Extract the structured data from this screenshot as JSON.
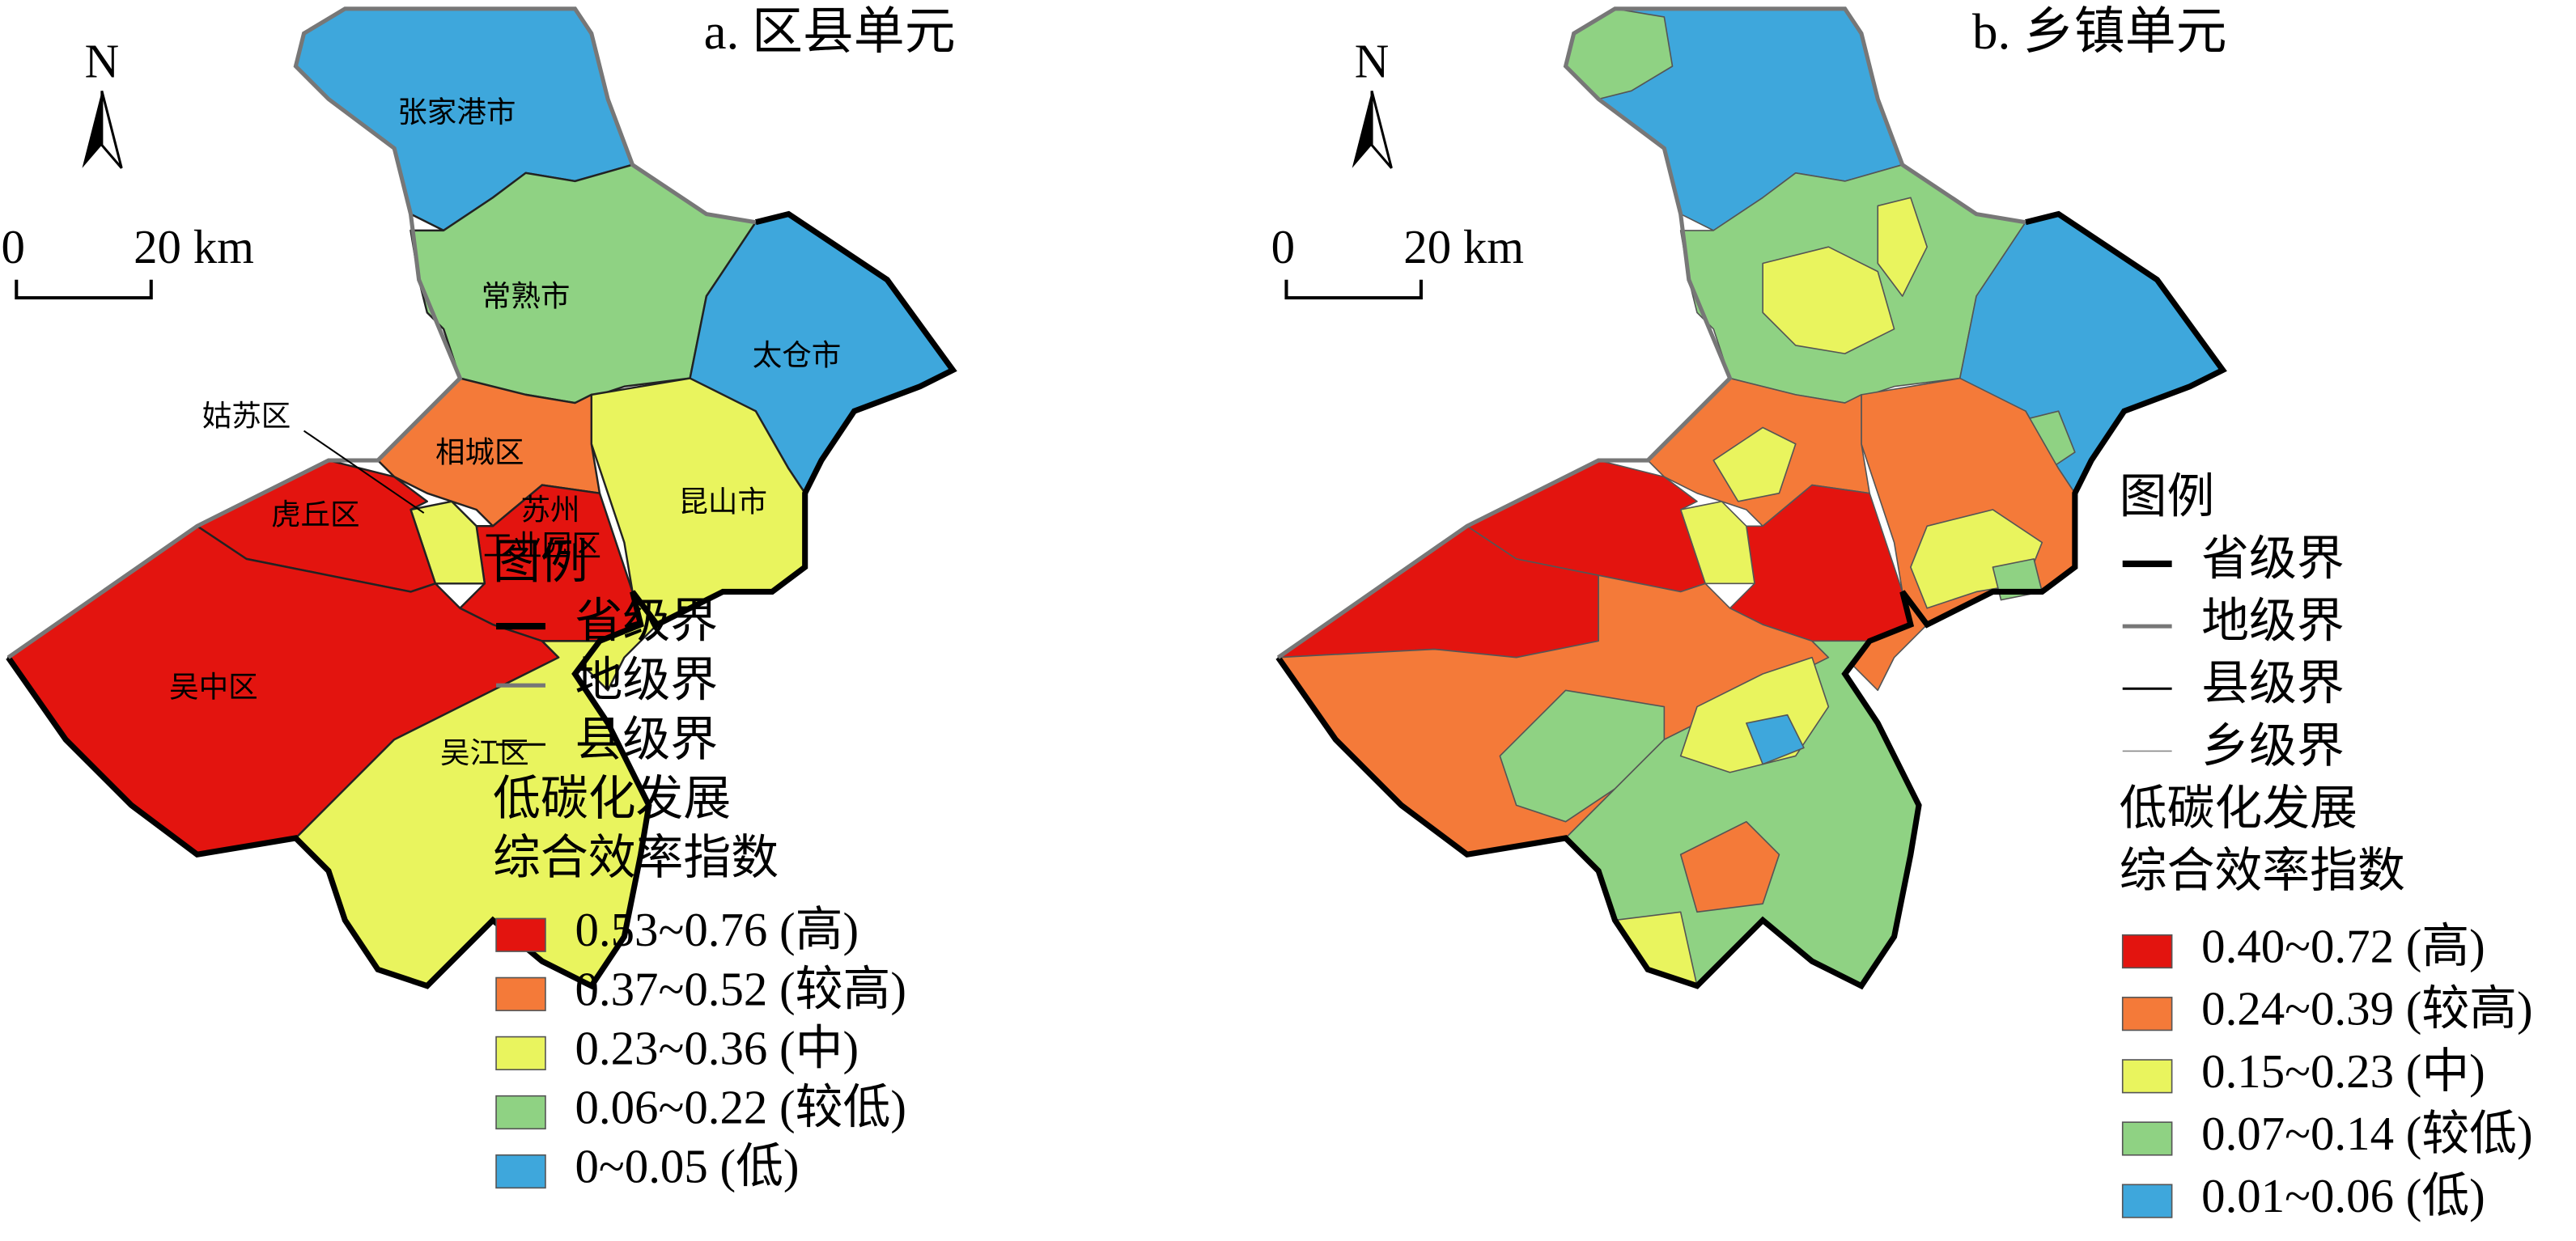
{
  "panels": [
    {
      "title": "a. 区县单元",
      "north": "N",
      "scale": {
        "start": "0",
        "end": "20 km"
      },
      "regions": [
        {
          "label": [
            "张家港市"
          ],
          "color": "#3ea7dc"
        },
        {
          "label": [
            "常熟市"
          ],
          "color": "#8fd283"
        },
        {
          "label": [
            "太仓市"
          ],
          "color": "#3ea7dc"
        },
        {
          "label": [
            "昆山市"
          ],
          "color": "#e9f45e"
        },
        {
          "label": [
            "相城区"
          ],
          "color": "#f47a39"
        },
        {
          "label": [
            "苏州",
            "工业园区"
          ],
          "color": "#e3140f"
        },
        {
          "label": [
            "姑苏区"
          ],
          "color": "#e9f45e"
        },
        {
          "label": [
            "虎丘区"
          ],
          "color": "#e3140f"
        },
        {
          "label": [
            "吴中区"
          ],
          "color": "#e3140f"
        },
        {
          "label": [
            "吴江区"
          ],
          "color": "#e9f45e"
        }
      ],
      "legend": {
        "title": "图例",
        "boundaries": [
          "省级界",
          "地级界",
          "县级界"
        ],
        "index_title": [
          "低碳化发展",
          "综合效率指数"
        ],
        "classes": [
          {
            "label": "0.53~0.76 (高)",
            "color": "#e3140f"
          },
          {
            "label": "0.37~0.52 (较高)",
            "color": "#f47a39"
          },
          {
            "label": "0.23~0.36 (中)",
            "color": "#e9f45e"
          },
          {
            "label": "0.06~0.22 (较低)",
            "color": "#8fd283"
          },
          {
            "label": "0~0.05 (低)",
            "color": "#3ea7dc"
          }
        ]
      }
    },
    {
      "title": "b. 乡镇单元",
      "north": "N",
      "scale": {
        "start": "0",
        "end": "20 km"
      },
      "legend": {
        "title": "图例",
        "boundaries": [
          "省级界",
          "地级界",
          "县级界",
          "乡级界"
        ],
        "index_title": [
          "低碳化发展",
          "综合效率指数"
        ],
        "classes": [
          {
            "label": "0.40~0.72 (高)",
            "color": "#e3140f"
          },
          {
            "label": "0.24~0.39 (较高)",
            "color": "#f47a39"
          },
          {
            "label": "0.15~0.23 (中)",
            "color": "#e9f45e"
          },
          {
            "label": "0.07~0.14 (较低)",
            "color": "#8fd283"
          },
          {
            "label": "0.01~0.06 (低)",
            "color": "#3ea7dc"
          }
        ]
      }
    }
  ]
}
